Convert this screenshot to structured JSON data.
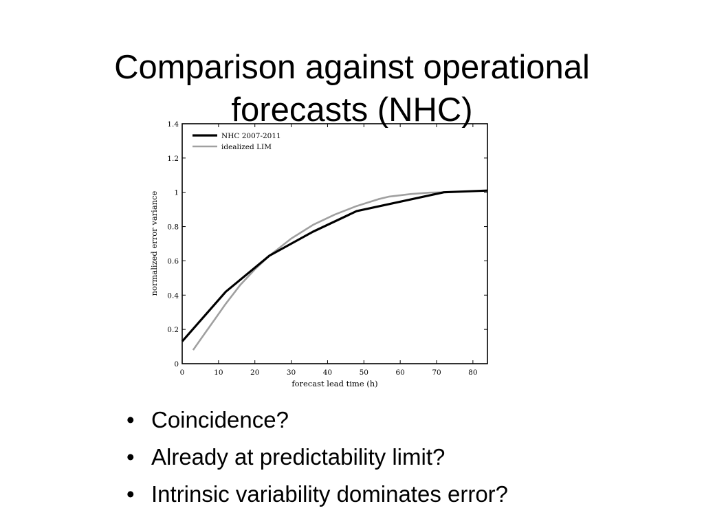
{
  "slide": {
    "title_lines": [
      "Comparison against operational",
      "forecasts (NHC)"
    ]
  },
  "chart_data": {
    "type": "line",
    "xlabel": "forecast lead time (h)",
    "ylabel": "normalized error variance",
    "xlim": [
      0,
      84
    ],
    "ylim": [
      0,
      1.4
    ],
    "x_ticks": [
      0,
      10,
      20,
      30,
      40,
      50,
      60,
      70,
      80
    ],
    "y_ticks": [
      0,
      0.2,
      0.4,
      0.6,
      0.8,
      1,
      1.2,
      1.4
    ],
    "y_tick_labels": [
      "0",
      "0.2",
      "0.4",
      "0.6",
      "0.8",
      "1",
      "1.2",
      "1.4"
    ],
    "grid": false,
    "legend_position": "top-left",
    "series": [
      {
        "name": "NHC 2007-2011",
        "color": "#000000",
        "x": [
          0,
          12,
          24,
          36,
          48,
          72,
          84
        ],
        "y": [
          0.13,
          0.42,
          0.63,
          0.77,
          0.89,
          1.0,
          1.01
        ]
      },
      {
        "name": "idealized LIM",
        "color": "#a0a0a0",
        "x": [
          3,
          6,
          9,
          12,
          16,
          20,
          24,
          30,
          36,
          42,
          48,
          54,
          57,
          63,
          68,
          72
        ],
        "y": [
          0.08,
          0.17,
          0.26,
          0.35,
          0.46,
          0.55,
          0.63,
          0.73,
          0.81,
          0.87,
          0.92,
          0.96,
          0.975,
          0.99,
          0.998,
          1.0
        ]
      }
    ]
  },
  "bullets": [
    {
      "marker": "•",
      "text": "Coincidence?"
    },
    {
      "marker": "•",
      "text": "Already at predictability limit?"
    },
    {
      "marker": "•",
      "text": "Intrinsic variability dominates error?"
    }
  ]
}
